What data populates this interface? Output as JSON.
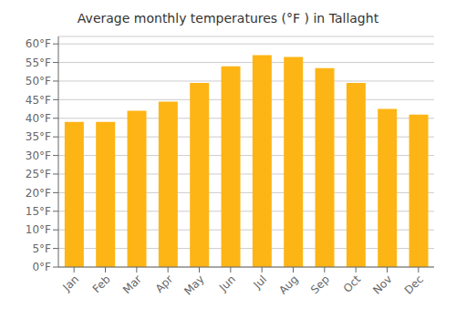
{
  "chart_data": {
    "type": "bar",
    "title": "Average monthly temperatures (°F ) in Tallaght",
    "categories": [
      "Jan",
      "Feb",
      "Mar",
      "Apr",
      "May",
      "Jun",
      "Jul",
      "Aug",
      "Sep",
      "Oct",
      "Nov",
      "Dec"
    ],
    "values": [
      39,
      39,
      42,
      44.5,
      49.5,
      54,
      57,
      56.5,
      53.5,
      49.5,
      42.5,
      41
    ],
    "color": "#FDB515",
    "ylim": [
      0,
      62
    ],
    "yticks": [
      {
        "value": 0,
        "label": "0°F"
      },
      {
        "value": 5,
        "label": "5°F"
      },
      {
        "value": 10,
        "label": "10°F"
      },
      {
        "value": 15,
        "label": "15°F"
      },
      {
        "value": 20,
        "label": "20°F"
      },
      {
        "value": 25,
        "label": "25°F"
      },
      {
        "value": 30,
        "label": "30°F"
      },
      {
        "value": 35,
        "label": "35°F"
      },
      {
        "value": 40,
        "label": "40°F"
      },
      {
        "value": 45,
        "label": "45°F"
      },
      {
        "value": 50,
        "label": "50°F"
      },
      {
        "value": 55,
        "label": "55°F"
      },
      {
        "value": 60,
        "label": "60°F"
      }
    ],
    "grid": true
  }
}
